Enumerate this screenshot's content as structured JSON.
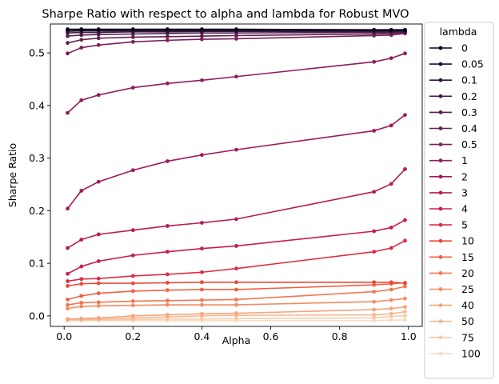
{
  "chart_data": {
    "type": "line",
    "title": "Sharpe Ratio with respect to alpha and lambda for Robust MVO",
    "xlabel": "Alpha",
    "ylabel": "Sharpe Ratio",
    "xlim": [
      -0.04,
      1.04
    ],
    "ylim": [
      -0.02,
      0.555
    ],
    "xticks": [
      "0.0",
      "0.2",
      "0.4",
      "0.6",
      "0.8",
      "1.0"
    ],
    "xtick_values": [
      0.0,
      0.2,
      0.4,
      0.6,
      0.8,
      1.0
    ],
    "yticks": [
      "0.0",
      "0.1",
      "0.2",
      "0.3",
      "0.4",
      "0.5"
    ],
    "ytick_values": [
      0.0,
      0.1,
      0.2,
      0.3,
      0.4,
      0.5
    ],
    "grid": false,
    "legend_title": "lambda",
    "legend_position": "outside right",
    "x": [
      0.01,
      0.05,
      0.1,
      0.2,
      0.3,
      0.4,
      0.5,
      0.9,
      0.95,
      0.99
    ],
    "series": [
      {
        "name": "0",
        "color": "#03051a",
        "values": [
          0.545,
          0.545,
          0.545,
          0.545,
          0.545,
          0.545,
          0.545,
          0.544,
          0.544,
          0.544
        ]
      },
      {
        "name": "0.05",
        "color": "#160f2e",
        "values": [
          0.544,
          0.544,
          0.544,
          0.544,
          0.544,
          0.544,
          0.544,
          0.543,
          0.543,
          0.543
        ]
      },
      {
        "name": "0.1",
        "color": "#291637",
        "values": [
          0.541,
          0.542,
          0.542,
          0.542,
          0.542,
          0.542,
          0.542,
          0.542,
          0.542,
          0.542
        ]
      },
      {
        "name": "0.2",
        "color": "#3d1a42",
        "values": [
          0.538,
          0.539,
          0.539,
          0.54,
          0.54,
          0.541,
          0.541,
          0.541,
          0.541,
          0.541
        ]
      },
      {
        "name": "0.3",
        "color": "#521e4d",
        "values": [
          0.532,
          0.534,
          0.535,
          0.536,
          0.537,
          0.538,
          0.538,
          0.539,
          0.539,
          0.54
        ]
      },
      {
        "name": "0.4",
        "color": "#651f52",
        "values": [
          0.519,
          0.525,
          0.528,
          0.53,
          0.531,
          0.532,
          0.533,
          0.536,
          0.537,
          0.539
        ]
      },
      {
        "name": "0.5",
        "color": "#7a1f59",
        "values": [
          0.499,
          0.51,
          0.515,
          0.521,
          0.524,
          0.526,
          0.527,
          0.533,
          0.534,
          0.537
        ]
      },
      {
        "name": "1",
        "color": "#8e1d5b",
        "values": [
          0.386,
          0.41,
          0.42,
          0.434,
          0.442,
          0.448,
          0.455,
          0.483,
          0.49,
          0.499
        ]
      },
      {
        "name": "2",
        "color": "#a3195b",
        "values": [
          0.204,
          0.238,
          0.255,
          0.277,
          0.294,
          0.306,
          0.316,
          0.352,
          0.362,
          0.382
        ]
      },
      {
        "name": "3",
        "color": "#b81b54",
        "values": [
          0.129,
          0.145,
          0.155,
          0.163,
          0.171,
          0.177,
          0.184,
          0.236,
          0.251,
          0.279
        ]
      },
      {
        "name": "4",
        "color": "#cb1b4f",
        "values": [
          0.08,
          0.094,
          0.104,
          0.115,
          0.122,
          0.128,
          0.133,
          0.161,
          0.168,
          0.182
        ]
      },
      {
        "name": "5",
        "color": "#dd2c45",
        "values": [
          0.066,
          0.07,
          0.071,
          0.076,
          0.079,
          0.083,
          0.09,
          0.122,
          0.129,
          0.143
        ]
      },
      {
        "name": "10",
        "color": "#e84a3a",
        "values": [
          0.057,
          0.061,
          0.062,
          0.062,
          0.063,
          0.064,
          0.064,
          0.064,
          0.064,
          0.062
        ]
      },
      {
        "name": "15",
        "color": "#f06043",
        "values": [
          0.031,
          0.038,
          0.043,
          0.047,
          0.049,
          0.05,
          0.05,
          0.059,
          0.061,
          0.063
        ]
      },
      {
        "name": "20",
        "color": "#f37651",
        "values": [
          0.021,
          0.025,
          0.026,
          0.028,
          0.029,
          0.03,
          0.031,
          0.046,
          0.05,
          0.056
        ]
      },
      {
        "name": "25",
        "color": "#f58c63",
        "values": [
          0.014,
          0.018,
          0.019,
          0.02,
          0.021,
          0.021,
          0.021,
          0.027,
          0.03,
          0.033
        ]
      },
      {
        "name": "40",
        "color": "#f6a47a",
        "values": [
          -0.006,
          -0.005,
          -0.004,
          0.0,
          0.002,
          0.004,
          0.005,
          0.012,
          0.014,
          0.017
        ]
      },
      {
        "name": "50",
        "color": "#f6b891",
        "values": [
          -0.007,
          -0.007,
          -0.006,
          -0.004,
          -0.002,
          0.0,
          0.001,
          0.002,
          0.004,
          0.008
        ]
      },
      {
        "name": "75",
        "color": "#f7cba9",
        "values": [
          -0.008,
          -0.008,
          -0.008,
          -0.007,
          -0.006,
          -0.006,
          -0.005,
          -0.004,
          -0.001,
          0.0
        ]
      },
      {
        "name": "100",
        "color": "#f8dcc2",
        "values": [
          -0.009,
          -0.009,
          -0.009,
          -0.009,
          -0.009,
          -0.009,
          -0.009,
          -0.009,
          -0.008,
          -0.008
        ]
      }
    ]
  }
}
